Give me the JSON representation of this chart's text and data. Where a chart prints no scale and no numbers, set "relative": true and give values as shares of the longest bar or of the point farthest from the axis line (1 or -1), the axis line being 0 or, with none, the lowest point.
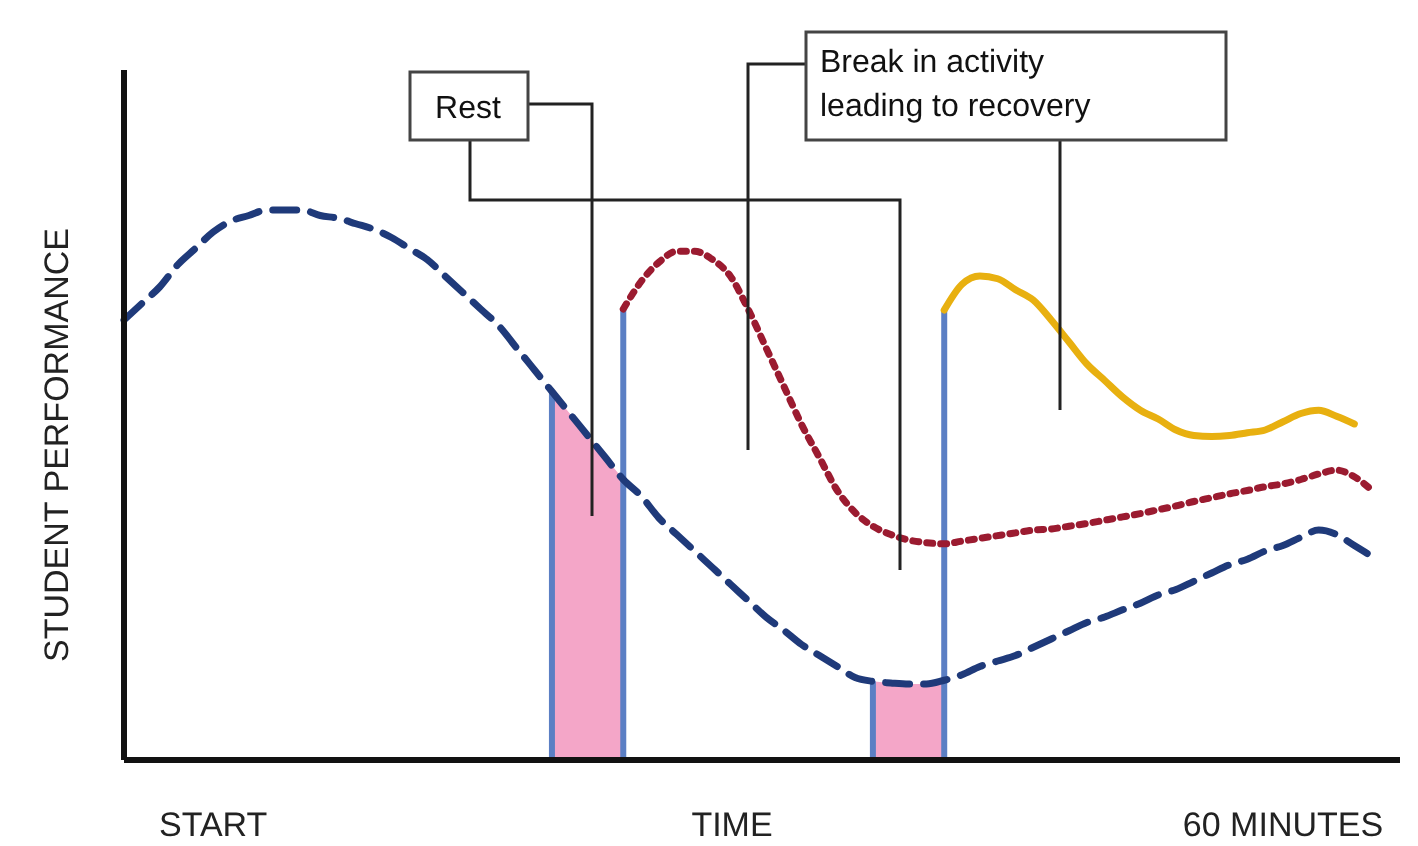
{
  "chart_data": {
    "type": "line",
    "relative": true,
    "xlabel": "TIME",
    "ylabel": "STUDENT PERFORMANCE",
    "categories": [
      null,
      null,
      null,
      null,
      null,
      "START",
      null,
      null,
      null,
      null,
      null,
      null,
      null,
      null,
      null,
      null,
      null,
      null,
      null,
      null,
      null,
      null,
      null,
      null,
      null,
      null,
      null,
      null,
      null,
      null,
      null,
      null,
      null,
      null,
      null,
      null,
      null,
      null,
      null,
      null,
      null,
      null,
      null,
      null,
      null,
      null,
      null,
      null,
      null,
      null,
      null,
      null,
      null,
      null,
      null,
      null,
      null,
      null,
      null,
      null,
      null,
      null,
      null,
      null,
      null,
      "60 MINUTES",
      null,
      null,
      null,
      null,
      null,
      null
    ],
    "series": [
      {
        "type": "area",
        "color": "#f4a6c8",
        "values": [
          null,
          null,
          null,
          null,
          null,
          null,
          null,
          null,
          null,
          null,
          null,
          null,
          null,
          null,
          null,
          null,
          null,
          null,
          null,
          null,
          null,
          null,
          null,
          null,
          0.67,
          0.63,
          0.59,
          0.55,
          0.51,
          null,
          null,
          null,
          null,
          null,
          null,
          null,
          null,
          null,
          null,
          null,
          null,
          null,
          0.143,
          0.14,
          0.138,
          0.138,
          0.145,
          null,
          null,
          null,
          null,
          null,
          null,
          null,
          null,
          null,
          null,
          null,
          null,
          null,
          null,
          null,
          null,
          null,
          null,
          null,
          null,
          null,
          null,
          null,
          null,
          null
        ]
      },
      {
        "color": "#1f3a7a",
        "line_style": "dashed",
        "values": [
          0.8,
          0.83,
          0.86,
          0.9,
          0.93,
          0.96,
          0.98,
          0.99,
          1,
          1,
          1,
          0.99,
          0.985,
          0.975,
          0.965,
          0.95,
          0.93,
          0.91,
          0.88,
          0.85,
          0.82,
          0.79,
          0.75,
          0.71,
          0.67,
          0.63,
          0.59,
          0.55,
          0.51,
          0.48,
          0.44,
          0.41,
          0.38,
          0.35,
          0.32,
          0.29,
          0.26,
          0.236,
          0.21,
          0.19,
          0.17,
          0.15,
          0.143,
          0.14,
          0.138,
          0.138,
          0.145,
          0.155,
          0.17,
          0.18,
          0.19,
          0.205,
          0.22,
          0.235,
          0.25,
          0.26,
          0.273,
          0.285,
          0.3,
          0.31,
          0.325,
          0.34,
          0.355,
          0.365,
          0.38,
          0.39,
          0.405,
          0.418,
          0.41,
          0.39,
          0.37,
          null
        ]
      },
      {
        "color": "#9b1b30",
        "line_style": "dotted",
        "values": [
          null,
          null,
          null,
          null,
          null,
          null,
          null,
          null,
          null,
          null,
          null,
          null,
          null,
          null,
          null,
          null,
          null,
          null,
          null,
          null,
          null,
          null,
          null,
          null,
          null,
          null,
          null,
          null,
          0.82,
          0.87,
          0.905,
          0.925,
          0.925,
          0.91,
          0.88,
          0.82,
          0.75,
          0.68,
          0.61,
          0.55,
          0.49,
          0.45,
          0.425,
          0.41,
          0.4,
          0.395,
          0.393,
          0.398,
          0.403,
          0.408,
          0.413,
          0.418,
          0.42,
          0.425,
          0.43,
          0.436,
          0.442,
          0.448,
          0.455,
          0.462,
          0.47,
          0.477,
          0.484,
          0.49,
          0.497,
          0.502,
          0.51,
          0.52,
          0.527,
          0.515,
          0.49,
          null
        ]
      },
      {
        "color": "#e8b010",
        "line_style": "solid",
        "values": [
          null,
          null,
          null,
          null,
          null,
          null,
          null,
          null,
          null,
          null,
          null,
          null,
          null,
          null,
          null,
          null,
          null,
          null,
          null,
          null,
          null,
          null,
          null,
          null,
          null,
          null,
          null,
          null,
          null,
          null,
          null,
          null,
          null,
          null,
          null,
          null,
          null,
          null,
          null,
          null,
          null,
          null,
          null,
          null,
          null,
          null,
          0.818,
          0.865,
          0.88,
          0.875,
          0.855,
          0.836,
          0.8,
          0.76,
          0.72,
          0.69,
          0.66,
          0.636,
          0.62,
          0.6,
          0.59,
          0.588,
          0.59,
          0.595,
          0.6,
          0.615,
          0.63,
          0.636,
          0.625,
          0.611,
          null,
          null
        ]
      }
    ],
    "annotations": [
      "Rest",
      "Break in activity leading to recovery"
    ]
  }
}
